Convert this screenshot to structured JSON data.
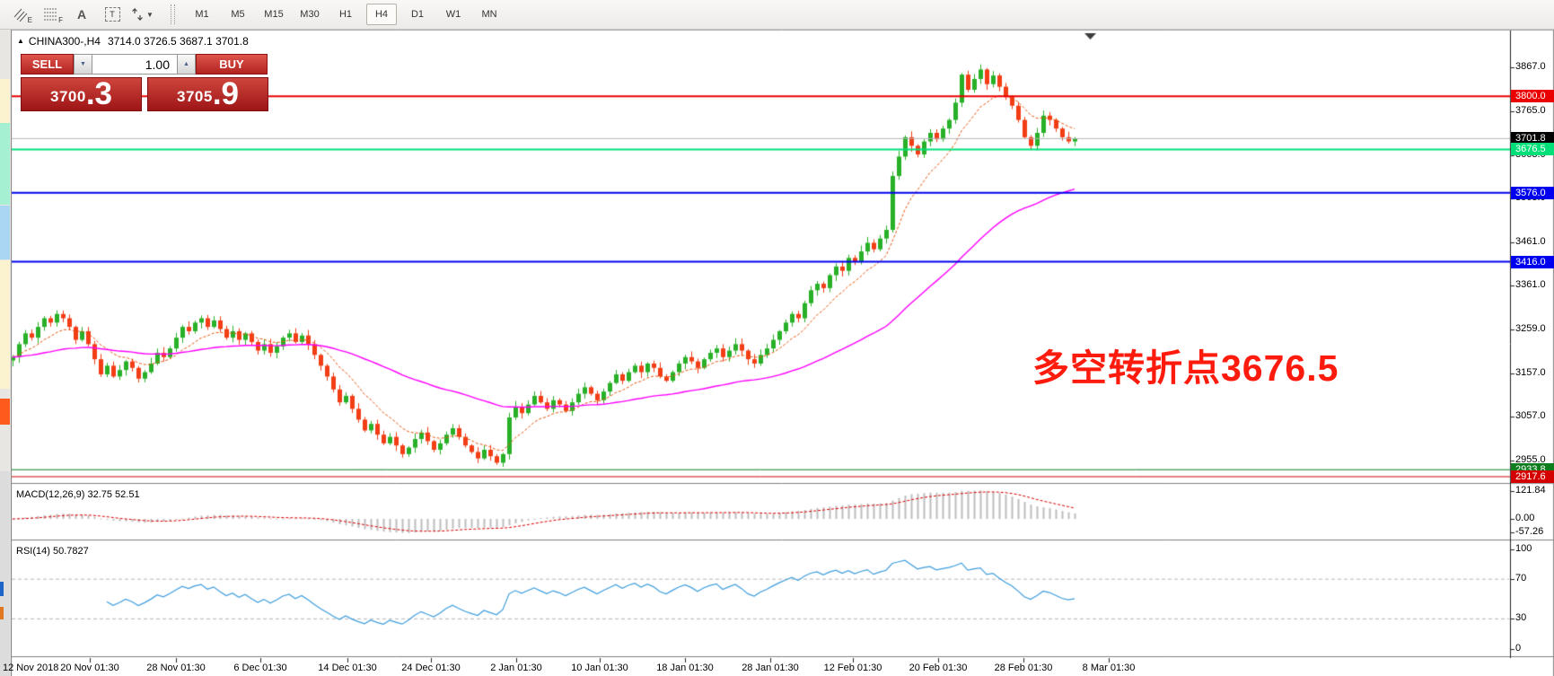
{
  "toolbar": {
    "tool_e_label": "E",
    "tool_f_label": "F",
    "tool_a_label": "A",
    "tool_t_label": "T",
    "timeframes": [
      {
        "label": "M1",
        "active": false
      },
      {
        "label": "M5",
        "active": false
      },
      {
        "label": "M15",
        "active": false
      },
      {
        "label": "M30",
        "active": false
      },
      {
        "label": "H1",
        "active": false
      },
      {
        "label": "H4",
        "active": true
      },
      {
        "label": "D1",
        "active": false
      },
      {
        "label": "W1",
        "active": false
      },
      {
        "label": "MN",
        "active": false
      }
    ]
  },
  "chart": {
    "symbol_header": "CHINA300-,H4",
    "ohlc_header": "3714.0 3726.5 3687.1 3701.8",
    "trade_panel": {
      "sell_label": "SELL",
      "buy_label": "BUY",
      "volume": "1.00",
      "sell_price_int": "3700",
      "sell_price_frac": ".3",
      "buy_price_int": "3705",
      "buy_price_frac": ".9"
    },
    "annotation": {
      "text": "多空转折点3676.5",
      "color": "#fd1b0d"
    },
    "macd_label": "MACD(12,26,9) 32.75 52.51",
    "rsi_label": "RSI(14) 50.7827"
  },
  "chart_data": {
    "type": "candlestick",
    "symbol": "CHINA300-",
    "timeframe": "H4",
    "last_bar": {
      "open": 3714.0,
      "high": 3726.5,
      "low": 3687.1,
      "close": 3701.8
    },
    "bid": 3700.3,
    "ask": 3705.9,
    "bull_color": "#28b128",
    "bear_color": "#f23d15",
    "price_axis_ticks": [
      "3867.0",
      "3765.0",
      "3663.0",
      "3563.0",
      "3461.0",
      "3361.0",
      "3259.0",
      "3157.0",
      "3057.0",
      "2955.0"
    ],
    "price_range": [
      2955.0,
      3867.0
    ],
    "closes": [
      3195,
      3225,
      3250,
      3240,
      3265,
      3285,
      3275,
      3295,
      3285,
      3265,
      3235,
      3255,
      3225,
      3190,
      3155,
      3175,
      3150,
      3165,
      3185,
      3170,
      3145,
      3160,
      3180,
      3205,
      3195,
      3215,
      3240,
      3265,
      3255,
      3275,
      3285,
      3265,
      3280,
      3260,
      3240,
      3255,
      3235,
      3250,
      3230,
      3210,
      3225,
      3205,
      3220,
      3240,
      3250,
      3230,
      3245,
      3225,
      3200,
      3175,
      3150,
      3120,
      3090,
      3105,
      3075,
      3050,
      3025,
      3040,
      3015,
      2995,
      3010,
      2990,
      2970,
      2985,
      3005,
      3020,
      3000,
      2980,
      2995,
      3015,
      3030,
      3010,
      2990,
      2975,
      2960,
      2980,
      2965,
      2950,
      2970,
      3055,
      3080,
      3065,
      3085,
      3105,
      3090,
      3075,
      3095,
      3085,
      3070,
      3090,
      3110,
      3125,
      3110,
      3095,
      3115,
      3135,
      3155,
      3140,
      3160,
      3175,
      3160,
      3180,
      3170,
      3150,
      3140,
      3160,
      3180,
      3195,
      3185,
      3170,
      3190,
      3205,
      3215,
      3195,
      3210,
      3225,
      3210,
      3190,
      3180,
      3200,
      3215,
      3235,
      3255,
      3275,
      3295,
      3285,
      3320,
      3350,
      3365,
      3355,
      3385,
      3405,
      3395,
      3425,
      3415,
      3440,
      3460,
      3445,
      3470,
      3490,
      3615,
      3660,
      3705,
      3685,
      3665,
      3695,
      3715,
      3700,
      3725,
      3745,
      3785,
      3850,
      3815,
      3840,
      3862,
      3828,
      3848,
      3822,
      3798,
      3778,
      3745,
      3705,
      3685,
      3715,
      3755,
      3745,
      3725,
      3705,
      3695,
      3701.8
    ],
    "levels": [
      {
        "value": 3800.0,
        "label": "3800.0",
        "color": "#ea0000",
        "width": 2,
        "label_bg": "#ea0000"
      },
      {
        "value": 3701.8,
        "label": "3701.8",
        "color": "#b4b4b4",
        "width": 1,
        "label_bg": "#000000"
      },
      {
        "value": 3676.5,
        "label": "3676.5",
        "color": "#00df78",
        "width": 2,
        "label_bg": "#00df78"
      },
      {
        "value": 3576.0,
        "label": "3576.0",
        "color": "#0000ee",
        "width": 2,
        "label_bg": "#0000ee"
      },
      {
        "value": 3416.0,
        "label": "3416.0",
        "color": "#0000ee",
        "width": 2,
        "label_bg": "#0000ee"
      },
      {
        "value": 2933.8,
        "label": "2933.8",
        "color": "#0e7d1e",
        "width": 1,
        "label_bg": "#0e7d1e"
      },
      {
        "value": 2917.6,
        "label": "2917.6",
        "color": "#d40000",
        "width": 1,
        "label_bg": "#d40000"
      }
    ],
    "moving_averages": [
      {
        "name": "fast-ma",
        "type": "ema",
        "period": 10,
        "color": "#e8560c",
        "style": "dashed"
      },
      {
        "name": "slow-ma",
        "type": "ema",
        "period": 55,
        "color": "#ff00ff",
        "style": "solid"
      }
    ],
    "macd": {
      "fast": 12,
      "slow": 26,
      "signal": 9,
      "value": 32.75,
      "signal_value": 52.51,
      "axis_ticks": [
        "121.84",
        "0.00",
        "-57.26"
      ],
      "histogram_color": "#bdbdbd",
      "signal_color": "#dd0000"
    },
    "rsi": {
      "period": 14,
      "value": 50.7827,
      "axis_ticks": [
        "100",
        "70",
        "30",
        "0"
      ],
      "bands": [
        70,
        30
      ],
      "line_color": "#3f9ede"
    },
    "date_labels": [
      "12 Nov 2018",
      "20 Nov 01:30",
      "28 Nov 01:30",
      "6 Dec 01:30",
      "14 Dec 01:30",
      "24 Dec 01:30",
      "2 Jan 01:30",
      "10 Jan 01:30",
      "18 Jan 01:30",
      "28 Jan 01:30",
      "12 Feb 01:30",
      "20 Feb 01:30",
      "28 Feb 01:30",
      "8 Mar 01:30"
    ]
  }
}
